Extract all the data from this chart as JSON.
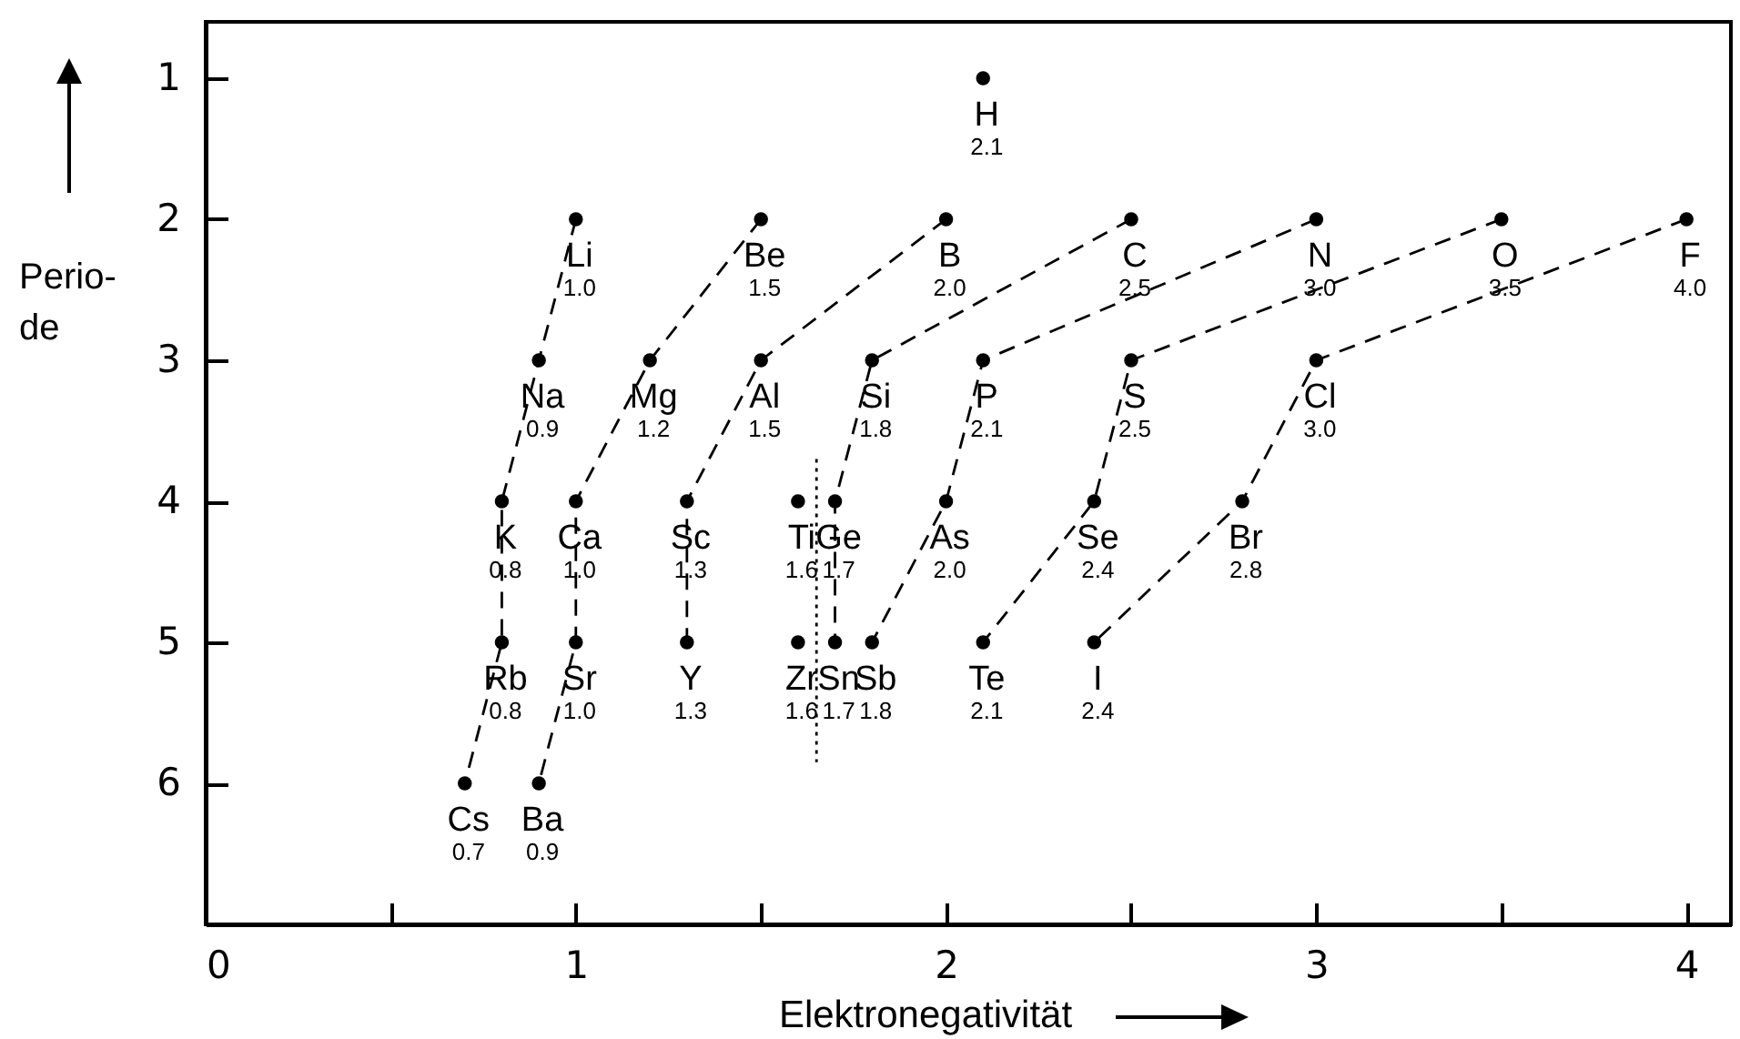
{
  "chart_data": {
    "type": "scatter",
    "xlabel": "Elektronegativität",
    "ylabel": "Perio-de",
    "xlim": [
      0,
      4.12
    ],
    "ylim": [
      7,
      0.6
    ],
    "xticks": [
      0,
      {
        "value": 0.5,
        "label": null
      },
      1,
      {
        "value": 1.5,
        "label": null
      },
      2,
      {
        "value": 2.5,
        "label": null
      },
      3,
      {
        "value": 3.5,
        "label": null
      },
      4
    ],
    "yticks": [
      1,
      2,
      3,
      4,
      5,
      6
    ],
    "marker": "circle",
    "line_style": "dashed",
    "series": [
      {
        "type": "line",
        "color": "#000000",
        "x": [
          1.0,
          0.9,
          0.8,
          0.8,
          0.7
        ],
        "values": [
          2,
          3,
          4,
          5,
          6
        ]
      },
      {
        "type": "line",
        "color": "#000000",
        "x": [
          1.5,
          1.2,
          1.0,
          1.0,
          0.9
        ],
        "values": [
          2,
          3,
          4,
          5,
          6
        ]
      },
      {
        "type": "line",
        "color": "#000000",
        "x": [
          2.0,
          1.5,
          1.3,
          1.3
        ],
        "values": [
          2,
          3,
          4,
          5
        ]
      },
      {
        "type": "line",
        "color": "#000000",
        "x": [
          2.5,
          1.8,
          1.7,
          1.7
        ],
        "values": [
          2,
          3,
          4,
          5
        ]
      },
      {
        "type": "line",
        "color": "#000000",
        "x": [
          3.0,
          2.1,
          2.0,
          1.8
        ],
        "values": [
          2,
          3,
          4,
          5
        ]
      },
      {
        "type": "line",
        "color": "#000000",
        "x": [
          3.5,
          2.5,
          2.4,
          2.1
        ],
        "values": [
          2,
          3,
          4,
          5
        ]
      },
      {
        "type": "line",
        "color": "#000000",
        "x": [
          4.0,
          3.0,
          2.8,
          2.4
        ],
        "values": [
          2,
          3,
          4,
          5
        ]
      },
      {
        "color": "#000000",
        "x": [
          2.1,
          1.6,
          1.6
        ],
        "values": [
          1,
          4,
          5
        ]
      },
      {
        "type": "line",
        "color": "#000000",
        "line_style": "dotted",
        "marker": "none",
        "x": [
          1.65,
          1.65
        ],
        "values": [
          3.7,
          5.85
        ]
      }
    ],
    "annotations": [
      {
        "text": "H",
        "x": 2.1,
        "y": 1
      },
      {
        "text": "Li",
        "x": 1.0,
        "y": 2
      },
      {
        "text": "Be",
        "x": 1.5,
        "y": 2
      },
      {
        "text": "B",
        "x": 2.0,
        "y": 2
      },
      {
        "text": "C",
        "x": 2.5,
        "y": 2
      },
      {
        "text": "N",
        "x": 3.0,
        "y": 2
      },
      {
        "text": "O",
        "x": 3.5,
        "y": 2
      },
      {
        "text": "F",
        "x": 4.0,
        "y": 2
      },
      {
        "text": "Na",
        "x": 0.9,
        "y": 3
      },
      {
        "text": "Mg",
        "x": 1.2,
        "y": 3
      },
      {
        "text": "Al",
        "x": 1.5,
        "y": 3
      },
      {
        "text": "Si",
        "x": 1.8,
        "y": 3
      },
      {
        "text": "P",
        "x": 2.1,
        "y": 3
      },
      {
        "text": "S",
        "x": 2.5,
        "y": 3
      },
      {
        "text": "Cl",
        "x": 3.0,
        "y": 3
      },
      {
        "text": "K",
        "x": 0.8,
        "y": 4
      },
      {
        "text": "Ca",
        "x": 1.0,
        "y": 4
      },
      {
        "text": "Sc",
        "x": 1.3,
        "y": 4
      },
      {
        "text": "Ti",
        "x": 1.6,
        "y": 4
      },
      {
        "text": "Ge",
        "x": 1.7,
        "y": 4
      },
      {
        "text": "As",
        "x": 2.0,
        "y": 4
      },
      {
        "text": "Se",
        "x": 2.4,
        "y": 4
      },
      {
        "text": "Br",
        "x": 2.8,
        "y": 4
      },
      {
        "text": "Rb",
        "x": 0.8,
        "y": 5
      },
      {
        "text": "Sr",
        "x": 1.0,
        "y": 5
      },
      {
        "text": "Y",
        "x": 1.3,
        "y": 5
      },
      {
        "text": "Zr",
        "x": 1.6,
        "y": 5
      },
      {
        "text": "Sn",
        "x": 1.7,
        "y": 5
      },
      {
        "text": "Sb",
        "x": 1.8,
        "y": 5
      },
      {
        "text": "Te",
        "x": 2.1,
        "y": 5
      },
      {
        "text": "I",
        "x": 2.4,
        "y": 5
      },
      {
        "text": "Cs",
        "x": 0.7,
        "y": 6
      },
      {
        "text": "Ba",
        "x": 0.9,
        "y": 6
      },
      {
        "text": "2.1",
        "x": 2.1,
        "y": 1
      },
      {
        "text": "1.0",
        "x": 1.0,
        "y": 2
      },
      {
        "text": "1.5",
        "x": 1.5,
        "y": 2
      },
      {
        "text": "2.0",
        "x": 2.0,
        "y": 2
      },
      {
        "text": "2.5",
        "x": 2.5,
        "y": 2
      },
      {
        "text": "3.0",
        "x": 3.0,
        "y": 2
      },
      {
        "text": "3.5",
        "x": 3.5,
        "y": 2
      },
      {
        "text": "4.0",
        "x": 4.0,
        "y": 2
      },
      {
        "text": "0.9",
        "x": 0.9,
        "y": 3
      },
      {
        "text": "1.2",
        "x": 1.2,
        "y": 3
      },
      {
        "text": "1.5",
        "x": 1.5,
        "y": 3
      },
      {
        "text": "1.8",
        "x": 1.8,
        "y": 3
      },
      {
        "text": "2.1",
        "x": 2.1,
        "y": 3
      },
      {
        "text": "2.5",
        "x": 2.5,
        "y": 3
      },
      {
        "text": "3.0",
        "x": 3.0,
        "y": 3
      },
      {
        "text": "0.8",
        "x": 0.8,
        "y": 4
      },
      {
        "text": "1.0",
        "x": 1.0,
        "y": 4
      },
      {
        "text": "1.3",
        "x": 1.3,
        "y": 4
      },
      {
        "text": "1.6",
        "x": 1.6,
        "y": 4
      },
      {
        "text": "1.7",
        "x": 1.7,
        "y": 4
      },
      {
        "text": "2.0",
        "x": 2.0,
        "y": 4
      },
      {
        "text": "2.4",
        "x": 2.4,
        "y": 4
      },
      {
        "text": "2.8",
        "x": 2.8,
        "y": 4
      },
      {
        "text": "0.8",
        "x": 0.8,
        "y": 5
      },
      {
        "text": "1.0",
        "x": 1.0,
        "y": 5
      },
      {
        "text": "1.3",
        "x": 1.3,
        "y": 5
      },
      {
        "text": "1.6",
        "x": 1.6,
        "y": 5
      },
      {
        "text": "1.7",
        "x": 1.7,
        "y": 5
      },
      {
        "text": "1.8",
        "x": 1.8,
        "y": 5
      },
      {
        "text": "2.1",
        "x": 2.1,
        "y": 5
      },
      {
        "text": "2.4",
        "x": 2.4,
        "y": 5
      },
      {
        "text": "0.7",
        "x": 0.7,
        "y": 6
      },
      {
        "text": "0.9",
        "x": 0.9,
        "y": 6
      }
    ]
  }
}
